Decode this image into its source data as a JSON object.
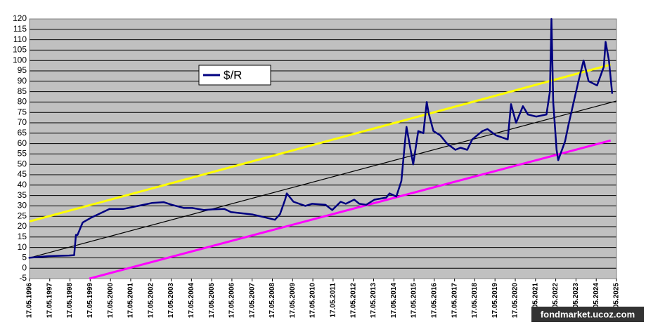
{
  "chart_data": {
    "type": "line",
    "watermark": "fondmarket.ucoz.com",
    "grid": true,
    "background": "#c0c0c0",
    "ylim": [
      -5,
      120
    ],
    "yticks": [
      -5,
      0,
      5,
      10,
      15,
      20,
      25,
      30,
      35,
      40,
      45,
      50,
      55,
      60,
      65,
      70,
      75,
      80,
      85,
      90,
      95,
      100,
      105,
      110,
      115,
      120
    ],
    "xlim": [
      "1996-05-17",
      "2025-05-17"
    ],
    "xticks": [
      {
        "value": "1996-05-17",
        "label": "17.05.1996"
      },
      {
        "value": "1997-05-17",
        "label": "17.05.1997"
      },
      {
        "value": "1998-05-17",
        "label": "17.05.1998"
      },
      {
        "value": "1999-05-17",
        "label": "17.05.1999"
      },
      {
        "value": "2000-05-17",
        "label": "17.05.2000"
      },
      {
        "value": "2001-05-17",
        "label": "17.05.2001"
      },
      {
        "value": "2002-05-17",
        "label": "17.05.2002"
      },
      {
        "value": "2003-05-17",
        "label": "17.05.2003"
      },
      {
        "value": "2004-05-17",
        "label": "17.05.2004"
      },
      {
        "value": "2005-05-17",
        "label": "17.05.2005"
      },
      {
        "value": "2006-05-17",
        "label": "17.05.2006"
      },
      {
        "value": "2007-05-17",
        "label": "17.05.2007"
      },
      {
        "value": "2008-05-17",
        "label": "17.05.2008"
      },
      {
        "value": "2009-05-17",
        "label": "17.05.2009"
      },
      {
        "value": "2010-05-17",
        "label": "17.05.2010"
      },
      {
        "value": "2011-05-17",
        "label": "17.05.2011"
      },
      {
        "value": "2012-05-17",
        "label": "17.05.2012"
      },
      {
        "value": "2013-05-17",
        "label": "17.05.2013"
      },
      {
        "value": "2014-05-17",
        "label": "17.05.2014"
      },
      {
        "value": "2015-05-17",
        "label": "17.05.2015"
      },
      {
        "value": "2016-05-17",
        "label": "17.05.2016"
      },
      {
        "value": "2017-05-17",
        "label": "17.05.2017"
      },
      {
        "value": "2018-05-17",
        "label": "17.05.2018"
      },
      {
        "value": "2019-05-17",
        "label": "17.05.2019"
      },
      {
        "value": "2020-05-17",
        "label": "17.05.2020"
      },
      {
        "value": "2021-05-17",
        "label": "17.05.2021"
      },
      {
        "value": "2022-05-17",
        "label": "17.05.2022"
      },
      {
        "value": "2023-05-17",
        "label": "17.05.2023"
      },
      {
        "value": "2024-05-17",
        "label": "17.05.2024"
      },
      {
        "value": "2025-05-17",
        "label": "17.05.2025"
      }
    ],
    "x": [
      "1996-05",
      "1997-05",
      "1998-05",
      "1998-08",
      "1998-09",
      "1998-10",
      "1999-01",
      "1999-06",
      "2000-01",
      "2000-05",
      "2001-01",
      "2002-01",
      "2002-06",
      "2003-01",
      "2003-06",
      "2004-01",
      "2004-06",
      "2005-01",
      "2005-06",
      "2006-01",
      "2006-05",
      "2007-01",
      "2007-06",
      "2008-01",
      "2008-07",
      "2008-10",
      "2009-01",
      "2009-02",
      "2009-06",
      "2010-01",
      "2010-05",
      "2011-01",
      "2011-05",
      "2011-10",
      "2012-01",
      "2012-06",
      "2012-09",
      "2013-01",
      "2013-06",
      "2014-01",
      "2014-03",
      "2014-07",
      "2014-10",
      "2014-12",
      "2015-01",
      "2015-05",
      "2015-08",
      "2015-11",
      "2016-01",
      "2016-02",
      "2016-05",
      "2016-09",
      "2017-01",
      "2017-06",
      "2017-09",
      "2018-01",
      "2018-04",
      "2018-10",
      "2019-01",
      "2019-06",
      "2020-01",
      "2020-03",
      "2020-06",
      "2020-10",
      "2021-01",
      "2021-06",
      "2021-12",
      "2022-02",
      "2022-03",
      "2022-04",
      "2022-06",
      "2022-07",
      "2022-11",
      "2023-01",
      "2023-07",
      "2023-10",
      "2024-01",
      "2024-06",
      "2024-10",
      "2024-11",
      "2025-01",
      "2025-03"
    ],
    "series": [
      {
        "name": "$/R",
        "color": "#000080",
        "values": [
          5.0,
          5.8,
          6.1,
          6.3,
          16,
          16,
          22,
          24.3,
          27,
          28.5,
          28.5,
          30.5,
          31.4,
          31.8,
          30.5,
          29,
          29,
          28,
          28.3,
          28.5,
          27,
          26.3,
          25.8,
          24.5,
          23.3,
          26,
          33,
          36,
          32,
          30,
          31,
          30.5,
          28,
          32,
          31,
          33,
          31,
          30.5,
          33,
          34,
          36,
          34.5,
          42,
          60,
          68,
          50,
          66,
          65,
          80,
          75,
          66,
          64,
          60,
          57,
          58,
          57,
          62,
          66,
          67,
          64,
          62,
          79,
          70,
          78,
          74,
          73,
          74,
          85,
          120,
          80,
          57,
          52,
          61,
          69,
          90,
          100,
          90,
          88,
          97,
          109,
          100,
          84
        ]
      }
    ],
    "trendlines": [
      {
        "color": "#ffff00",
        "x": [
          "1996-05-17",
          "2025-02"
        ],
        "values": [
          22.5,
          98
        ]
      },
      {
        "color": "#000000",
        "x": [
          "1996-05-17",
          "2025-05-17"
        ],
        "values": [
          5,
          80.5
        ]
      },
      {
        "color": "#ff00ff",
        "x": [
          "1999-05",
          "2025-02"
        ],
        "values": [
          -5,
          61.5
        ]
      }
    ]
  }
}
